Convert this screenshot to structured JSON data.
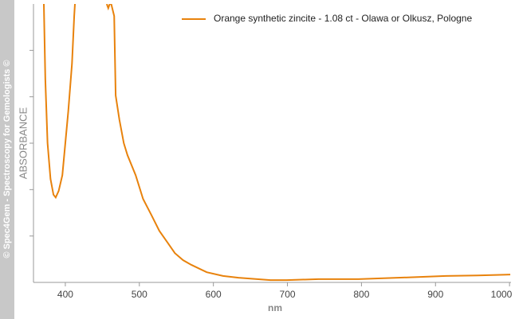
{
  "chart_data": {
    "type": "line",
    "watermark": "© Spec4Gem - Spectroscopy for Gemologists ©",
    "x_label": "nm",
    "y_label": "ABSORBANCE",
    "xlim": [
      357,
      1002
    ],
    "xticks": [
      400,
      500,
      600,
      700,
      800,
      900,
      1000
    ],
    "ylim": [
      0,
      6
    ],
    "yticks": [
      1,
      2,
      3,
      4,
      5
    ],
    "legend": "top-right",
    "series": [
      {
        "name": "Orange synthetic zincite - 1.08 ct - Olawa or Olkusz, Pologne",
        "color": "#e8820c",
        "x": [
          371,
          373,
          376,
          380,
          384,
          387,
          391,
          396,
          400,
          404,
          409,
          412,
          413,
          435,
          456,
          458,
          460,
          462,
          466,
          468,
          473,
          479,
          484,
          495,
          505,
          516,
          527,
          538,
          548,
          559,
          570,
          591,
          613,
          634,
          677,
          699,
          742,
          796,
          849,
          914,
          957,
          1001
        ],
        "values": [
          6.0,
          4.37,
          3.0,
          2.23,
          1.89,
          1.83,
          1.97,
          2.31,
          3.0,
          3.69,
          4.71,
          5.74,
          6.0,
          null,
          6.0,
          5.91,
          6.0,
          6.0,
          5.74,
          4.03,
          3.51,
          3.0,
          2.74,
          2.31,
          1.8,
          1.46,
          1.11,
          0.86,
          0.63,
          0.48,
          0.38,
          0.22,
          0.14,
          0.1,
          0.05,
          0.05,
          0.07,
          0.07,
          0.1,
          0.14,
          0.15,
          0.17
        ]
      }
    ]
  }
}
